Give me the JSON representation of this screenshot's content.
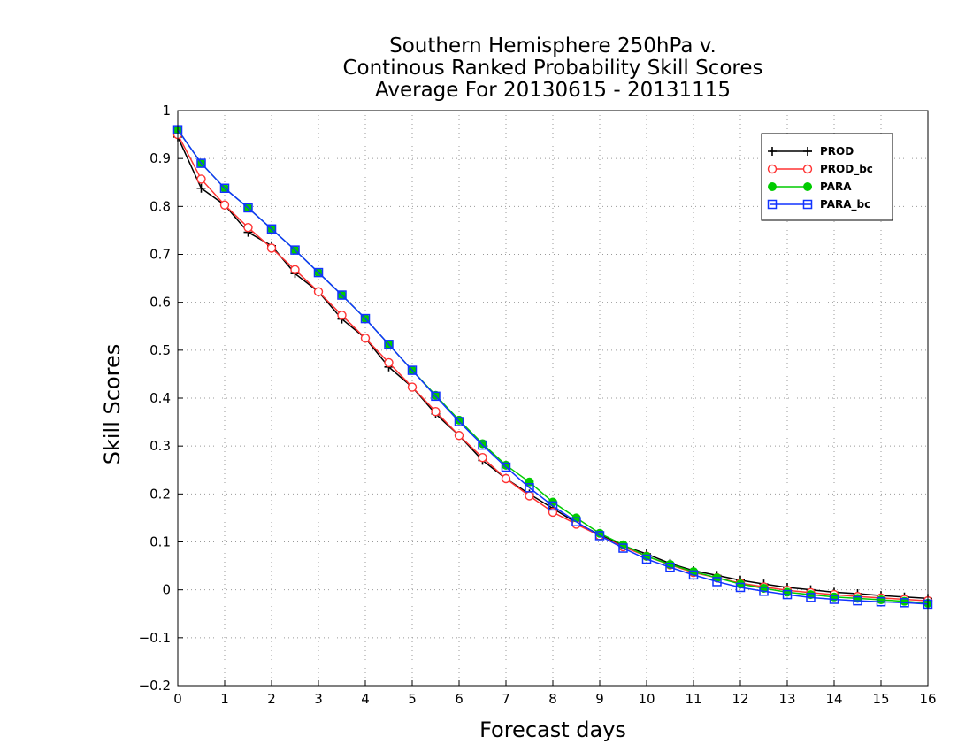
{
  "chart_data": {
    "type": "line",
    "title_lines": [
      "Southern Hemisphere 250hPa v.",
      "Continous Ranked Probability Skill Scores",
      "Average For 20130615 - 20131115"
    ],
    "xlabel": "Forecast days",
    "ylabel": "Skill Scores",
    "xlim": [
      0,
      16
    ],
    "ylim": [
      -0.2,
      1
    ],
    "x_ticks": [
      0,
      1,
      2,
      3,
      4,
      5,
      6,
      7,
      8,
      9,
      10,
      11,
      12,
      13,
      14,
      15,
      16
    ],
    "y_ticks": [
      -0.2,
      -0.1,
      0,
      0.1,
      0.2,
      0.3,
      0.4,
      0.5,
      0.6,
      0.7,
      0.8,
      0.9,
      1
    ],
    "grid": true,
    "legend_position": "top-right",
    "x": [
      0,
      0.5,
      1,
      1.5,
      2,
      2.5,
      3,
      3.5,
      4,
      4.5,
      5,
      5.5,
      6,
      6.5,
      7,
      7.5,
      8,
      8.5,
      9,
      9.5,
      10,
      10.5,
      11,
      11.5,
      12,
      12.5,
      13,
      13.5,
      14,
      14.5,
      15,
      15.5,
      16
    ],
    "series": [
      {
        "name": "PROD",
        "color": "#000000",
        "marker": "plus",
        "values": [
          0.945,
          0.838,
          0.803,
          0.746,
          0.718,
          0.66,
          0.622,
          0.565,
          0.525,
          0.465,
          0.423,
          0.367,
          0.322,
          0.27,
          0.232,
          0.2,
          0.17,
          0.14,
          0.115,
          0.092,
          0.075,
          0.055,
          0.04,
          0.03,
          0.02,
          0.012,
          0.005,
          0.0,
          -0.005,
          -0.008,
          -0.012,
          -0.015,
          -0.018
        ]
      },
      {
        "name": "PROD_bc",
        "color": "#ff3333",
        "marker": "circle-open",
        "values": [
          0.95,
          0.857,
          0.803,
          0.756,
          0.713,
          0.668,
          0.622,
          0.573,
          0.525,
          0.474,
          0.423,
          0.372,
          0.322,
          0.276,
          0.232,
          0.196,
          0.162,
          0.137,
          0.113,
          0.09,
          0.07,
          0.052,
          0.036,
          0.025,
          0.014,
          0.006,
          -0.001,
          -0.006,
          -0.01,
          -0.014,
          -0.017,
          -0.02,
          -0.023
        ]
      },
      {
        "name": "PARA",
        "color": "#00cc00",
        "marker": "circle-filled",
        "values": [
          0.96,
          0.89,
          0.838,
          0.797,
          0.753,
          0.709,
          0.662,
          0.615,
          0.566,
          0.512,
          0.458,
          0.406,
          0.354,
          0.305,
          0.26,
          0.225,
          0.183,
          0.15,
          0.118,
          0.094,
          0.07,
          0.053,
          0.038,
          0.025,
          0.012,
          0.003,
          -0.005,
          -0.01,
          -0.015,
          -0.018,
          -0.021,
          -0.024,
          -0.028
        ]
      },
      {
        "name": "PARA_bc",
        "color": "#1133ff",
        "marker": "square-open",
        "values": [
          0.96,
          0.89,
          0.838,
          0.797,
          0.753,
          0.709,
          0.662,
          0.615,
          0.566,
          0.512,
          0.458,
          0.404,
          0.351,
          0.302,
          0.256,
          0.213,
          0.175,
          0.142,
          0.113,
          0.087,
          0.064,
          0.047,
          0.031,
          0.017,
          0.005,
          -0.003,
          -0.01,
          -0.016,
          -0.02,
          -0.023,
          -0.025,
          -0.027,
          -0.03
        ]
      }
    ]
  }
}
